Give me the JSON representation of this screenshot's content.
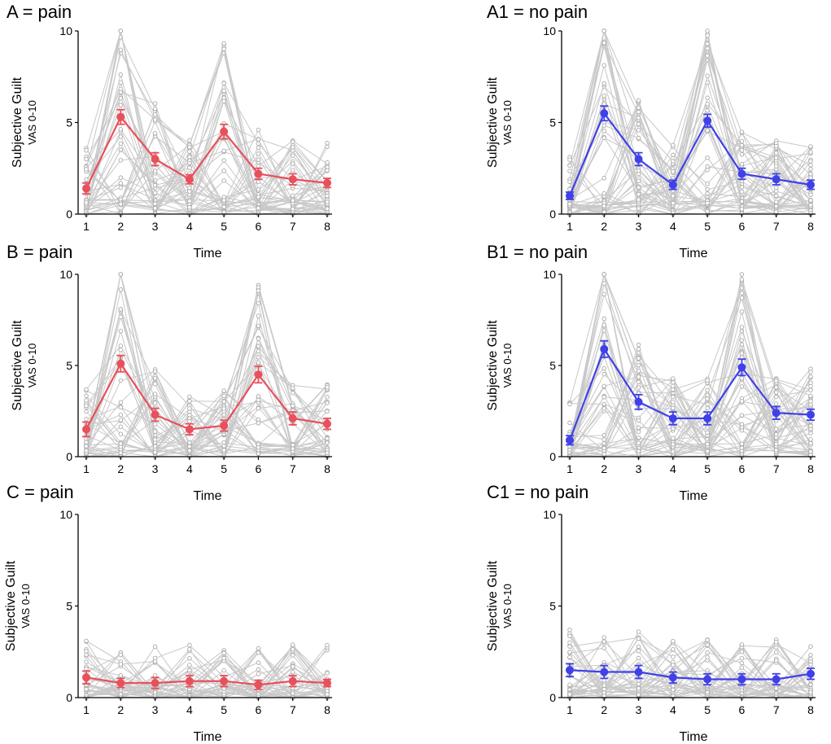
{
  "colors": {
    "pain": "#e8505b",
    "no_pain": "#4040e8",
    "individual": "#c8c8c8",
    "axis": "#000000"
  },
  "chart_data": [
    {
      "id": "A",
      "panel_title": "A = pain",
      "type": "line",
      "color_key": "pain",
      "ylabel": "Subjective Guilt",
      "ylabel_sub": "VAS 0-10",
      "xlabel": "Time",
      "show_xlabel": true,
      "x": [
        1,
        2,
        3,
        4,
        5,
        6,
        7,
        8
      ],
      "ylim": [
        0,
        10
      ],
      "yticks": [
        0,
        5,
        10
      ],
      "mean": [
        1.4,
        5.3,
        3.0,
        1.9,
        4.5,
        2.2,
        1.9,
        1.7
      ],
      "error": [
        0.3,
        0.4,
        0.35,
        0.25,
        0.4,
        0.3,
        0.3,
        0.25
      ],
      "individual_series": 44
    },
    {
      "id": "A1",
      "panel_title": "A1 = no pain",
      "type": "line",
      "color_key": "no_pain",
      "ylabel": "Subjective Guilt",
      "ylabel_sub": "VAS 0-10",
      "xlabel": "Time",
      "show_xlabel": true,
      "x": [
        1,
        2,
        3,
        4,
        5,
        6,
        7,
        8
      ],
      "ylim": [
        0,
        10
      ],
      "yticks": [
        0,
        5,
        10
      ],
      "mean": [
        1.0,
        5.5,
        3.0,
        1.6,
        5.1,
        2.2,
        1.9,
        1.6
      ],
      "error": [
        0.2,
        0.4,
        0.35,
        0.25,
        0.35,
        0.3,
        0.3,
        0.25
      ],
      "individual_series": 48
    },
    {
      "id": "B",
      "panel_title": "B = pain",
      "type": "line",
      "color_key": "pain",
      "ylabel": "Subjective Guilt",
      "ylabel_sub": "VAS 0-10",
      "xlabel": "Time",
      "show_xlabel": true,
      "x": [
        1,
        2,
        3,
        4,
        5,
        6,
        7,
        8
      ],
      "ylim": [
        0,
        10
      ],
      "yticks": [
        0,
        5,
        10
      ],
      "mean": [
        1.5,
        5.1,
        2.3,
        1.5,
        1.7,
        4.5,
        2.1,
        1.8
      ],
      "error": [
        0.4,
        0.45,
        0.35,
        0.3,
        0.3,
        0.45,
        0.35,
        0.3
      ],
      "individual_series": 42
    },
    {
      "id": "B1",
      "panel_title": "B1 = no pain",
      "type": "line",
      "color_key": "no_pain",
      "ylabel": "Subjective Guilt",
      "ylabel_sub": "VAS 0-10",
      "xlabel": "Time",
      "show_xlabel": true,
      "x": [
        1,
        2,
        3,
        4,
        5,
        6,
        7,
        8
      ],
      "ylim": [
        0,
        10
      ],
      "yticks": [
        0,
        5,
        10
      ],
      "mean": [
        0.9,
        5.9,
        3.0,
        2.1,
        2.1,
        4.9,
        2.4,
        2.3
      ],
      "error": [
        0.25,
        0.45,
        0.4,
        0.35,
        0.35,
        0.45,
        0.35,
        0.3
      ],
      "individual_series": 46
    },
    {
      "id": "C",
      "panel_title": "C = pain",
      "type": "line",
      "color_key": "pain",
      "ylabel": "Subjective Guilt",
      "ylabel_sub": "VAS 0-10",
      "xlabel": "Time",
      "show_xlabel": true,
      "x": [
        1,
        2,
        3,
        4,
        5,
        6,
        7,
        8
      ],
      "ylim": [
        0,
        10
      ],
      "yticks": [
        0,
        5,
        10
      ],
      "mean": [
        1.1,
        0.8,
        0.8,
        0.9,
        0.9,
        0.7,
        0.9,
        0.8
      ],
      "error": [
        0.35,
        0.25,
        0.3,
        0.3,
        0.3,
        0.25,
        0.3,
        0.2
      ],
      "individual_series": 36
    },
    {
      "id": "C1",
      "panel_title": "C1 = no pain",
      "type": "line",
      "color_key": "no_pain",
      "ylabel": "Subjective Guilt",
      "ylabel_sub": "VAS 0-10",
      "xlabel": "Time",
      "show_xlabel": true,
      "x": [
        1,
        2,
        3,
        4,
        5,
        6,
        7,
        8
      ],
      "ylim": [
        0,
        10
      ],
      "yticks": [
        0,
        5,
        10
      ],
      "mean": [
        1.5,
        1.4,
        1.4,
        1.1,
        1.0,
        1.0,
        1.0,
        1.3
      ],
      "error": [
        0.35,
        0.35,
        0.35,
        0.3,
        0.3,
        0.3,
        0.3,
        0.3
      ],
      "individual_series": 38
    }
  ]
}
